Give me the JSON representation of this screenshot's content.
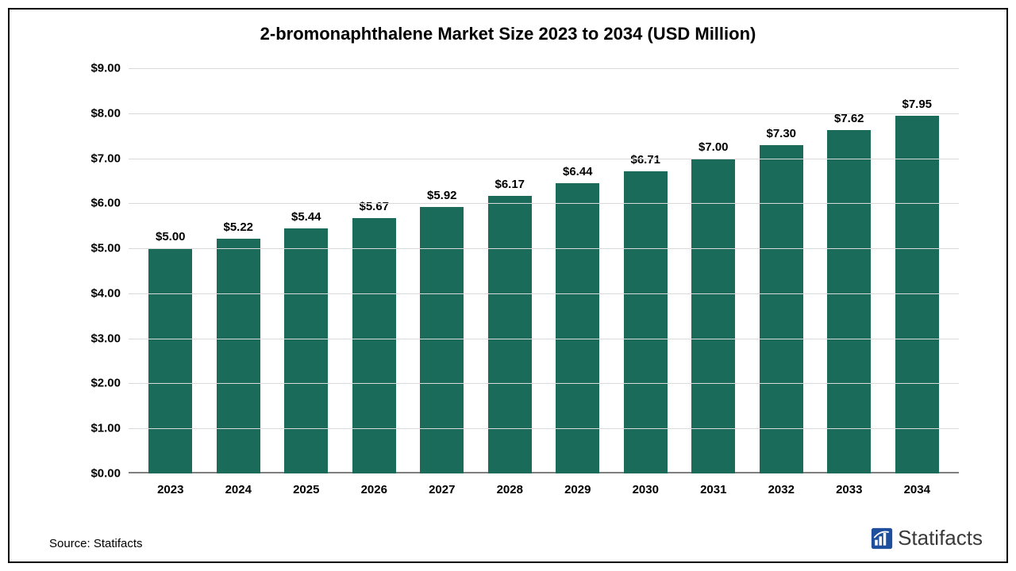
{
  "chart": {
    "type": "bar",
    "title": "2-bromonaphthalene Market Size 2023 to 2034 (USD Million)",
    "title_fontsize": 22,
    "title_fontweight": "bold",
    "background_color": "#ffffff",
    "frame_border_color": "#000000",
    "categories": [
      "2023",
      "2024",
      "2025",
      "2026",
      "2027",
      "2028",
      "2029",
      "2030",
      "2031",
      "2032",
      "2033",
      "2034"
    ],
    "values": [
      5.0,
      5.22,
      5.44,
      5.67,
      5.92,
      6.17,
      6.44,
      6.71,
      7.0,
      7.3,
      7.62,
      7.95
    ],
    "value_labels": [
      "$5.00",
      "$5.22",
      "$5.44",
      "$5.67",
      "$5.92",
      "$6.17",
      "$6.44",
      "$6.71",
      "$7.00",
      "$7.30",
      "$7.62",
      "$7.95"
    ],
    "bar_color": "#1a6b5a",
    "bar_width_ratio": 0.64,
    "ylim": [
      0,
      9
    ],
    "ytick_step": 1,
    "ytick_labels": [
      "$0.00",
      "$1.00",
      "$2.00",
      "$3.00",
      "$4.00",
      "$5.00",
      "$6.00",
      "$7.00",
      "$8.00",
      "$9.00"
    ],
    "grid_color": "#d9d9d9",
    "baseline_color": "#7f7f7f",
    "axis_label_fontsize": 15,
    "axis_label_fontweight": "bold",
    "value_label_fontsize": 15,
    "value_label_fontweight": "bold"
  },
  "footer": {
    "source_text": "Source: Statifacts",
    "logo_text": "Statifacts",
    "logo_color": "#1f4e9c",
    "logo_text_color": "#3a3a3a"
  }
}
